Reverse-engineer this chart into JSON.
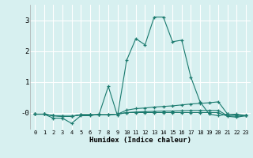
{
  "title": "",
  "xlabel": "Humidex (Indice chaleur)",
  "bg_color": "#d7f0f0",
  "line_color": "#1a7a6e",
  "grid_color": "#ffffff",
  "xlim": [
    -0.5,
    23.5
  ],
  "ylim": [
    -0.55,
    3.5
  ],
  "yticks": [
    0,
    1,
    2,
    3
  ],
  "ytick_labels": [
    "-0",
    "1",
    "2",
    "3"
  ],
  "xticks": [
    0,
    1,
    2,
    3,
    4,
    5,
    6,
    7,
    8,
    9,
    10,
    11,
    12,
    13,
    14,
    15,
    16,
    17,
    18,
    19,
    20,
    21,
    22,
    23
  ],
  "x": [
    0,
    1,
    2,
    3,
    4,
    5,
    6,
    7,
    8,
    9,
    10,
    11,
    12,
    13,
    14,
    15,
    16,
    17,
    18,
    19,
    20,
    21,
    22,
    23
  ],
  "series1": [
    -0.05,
    -0.05,
    -0.18,
    -0.18,
    -0.35,
    -0.1,
    -0.1,
    -0.05,
    0.85,
    -0.1,
    1.7,
    2.4,
    2.2,
    3.1,
    3.1,
    2.3,
    2.35,
    1.15,
    0.35,
    -0.05,
    -0.1,
    -0.05,
    -0.05,
    -0.1
  ],
  "series2": [
    -0.05,
    -0.05,
    -0.1,
    -0.12,
    -0.12,
    -0.07,
    -0.07,
    -0.07,
    -0.07,
    -0.05,
    0.08,
    0.13,
    0.15,
    0.18,
    0.2,
    0.22,
    0.25,
    0.28,
    0.3,
    0.32,
    0.35,
    -0.05,
    -0.08,
    -0.1
  ],
  "series3": [
    -0.05,
    -0.05,
    -0.1,
    -0.12,
    -0.12,
    -0.07,
    -0.07,
    -0.07,
    -0.07,
    -0.05,
    0.0,
    0.02,
    0.03,
    0.04,
    0.05,
    0.05,
    0.06,
    0.07,
    0.07,
    0.07,
    0.07,
    -0.1,
    -0.12,
    -0.1
  ],
  "series4": [
    -0.05,
    -0.05,
    -0.1,
    -0.12,
    -0.12,
    -0.07,
    -0.07,
    -0.07,
    -0.07,
    -0.05,
    0.0,
    0.0,
    0.0,
    0.0,
    0.0,
    0.0,
    0.0,
    0.0,
    0.0,
    0.0,
    0.0,
    -0.12,
    -0.15,
    -0.1
  ]
}
